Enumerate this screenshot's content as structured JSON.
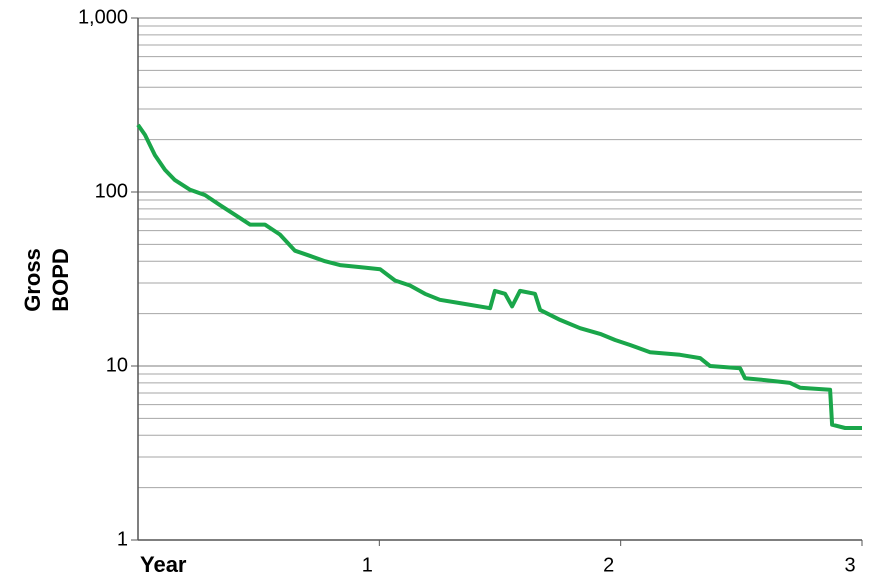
{
  "chart_data": {
    "type": "line",
    "x_label": "Year",
    "y_label": [
      "Gross",
      "BOPD"
    ],
    "log_y": true,
    "grid": true,
    "xlim": [
      0,
      3
    ],
    "xticks": [
      1,
      2,
      3
    ],
    "ylim": [
      1,
      1000
    ],
    "yticks": [
      {
        "value": 1,
        "label": "1"
      },
      {
        "value": 10,
        "label": "10"
      },
      {
        "value": 100,
        "label": "100"
      },
      {
        "value": 1000,
        "label": "1,000"
      }
    ],
    "minor_yticks": [
      2,
      3,
      4,
      5,
      6,
      7,
      8,
      9,
      20,
      30,
      40,
      50,
      60,
      70,
      80,
      90,
      200,
      300,
      400,
      500,
      600,
      700,
      800,
      900
    ],
    "x": [
      0,
      0.029,
      0.07,
      0.112,
      0.153,
      0.216,
      0.278,
      0.34,
      0.402,
      0.464,
      0.526,
      0.588,
      0.65,
      0.712,
      0.775,
      0.837,
      0.92,
      1.003,
      1.065,
      1.127,
      1.189,
      1.251,
      1.334,
      1.459,
      1.479,
      1.521,
      1.55,
      1.583,
      1.645,
      1.666,
      1.749,
      1.832,
      1.915,
      1.977,
      2.039,
      2.122,
      2.246,
      2.329,
      2.37,
      2.495,
      2.515,
      2.598,
      2.702,
      2.743,
      2.868,
      2.876,
      2.93,
      3.0
    ],
    "series": [
      {
        "color": "#1aa64a",
        "values": [
          243,
          213,
          163,
          134,
          117,
          103,
          96,
          84,
          74,
          65,
          65,
          57,
          46,
          43,
          40,
          38,
          37,
          36,
          31,
          29,
          26,
          24,
          23,
          21.5,
          27,
          26,
          22,
          27,
          26,
          21,
          18.4,
          16.5,
          15.3,
          14.1,
          13.2,
          12,
          11.6,
          11.1,
          10,
          9.7,
          8.5,
          8.3,
          8.0,
          7.5,
          7.3,
          4.6,
          4.4,
          4.4
        ]
      }
    ]
  }
}
